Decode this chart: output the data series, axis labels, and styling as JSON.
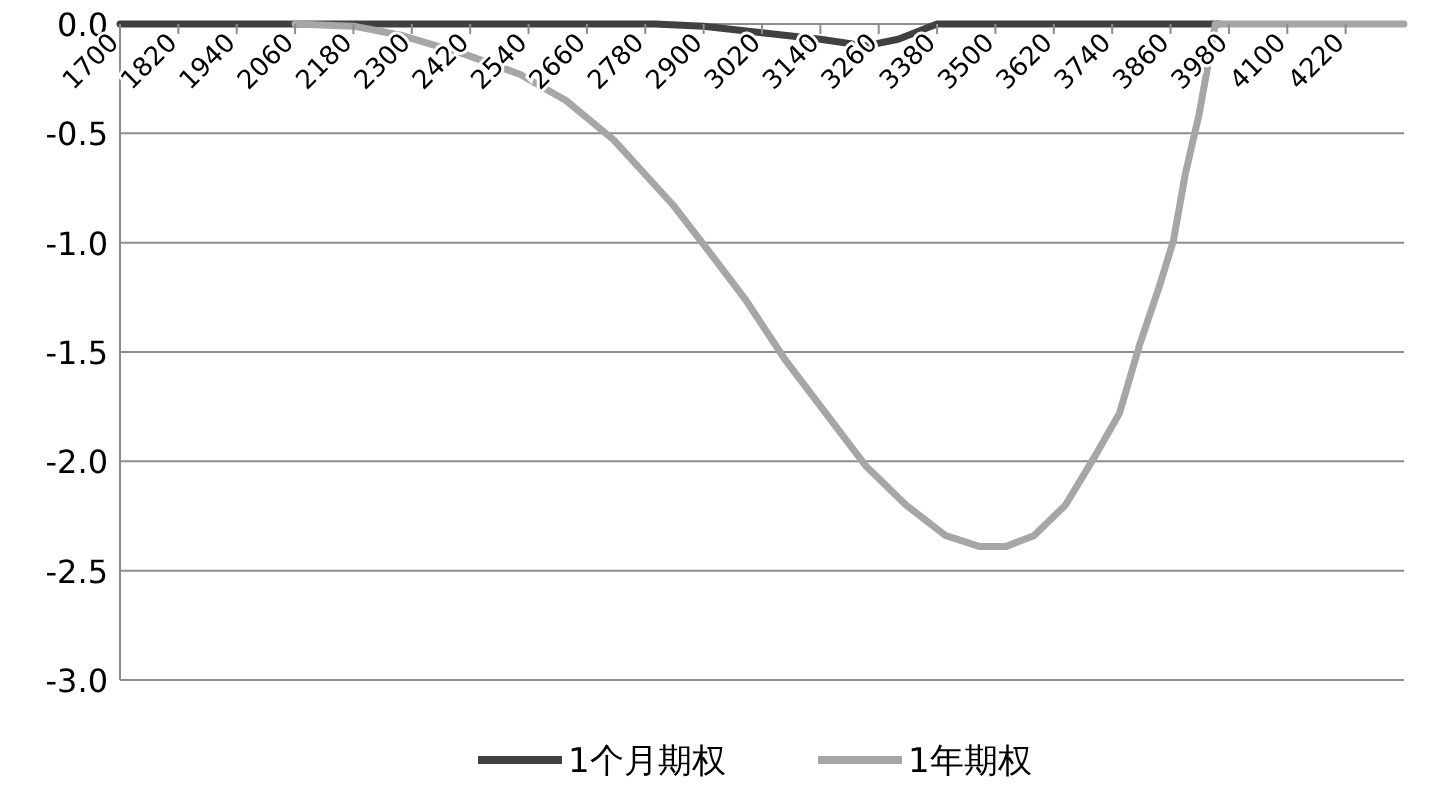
{
  "chart_data": {
    "type": "line",
    "xlim": [
      1700,
      4340
    ],
    "xticks": [
      1700,
      1820,
      1940,
      2060,
      2180,
      2300,
      2420,
      2540,
      2660,
      2780,
      2900,
      3020,
      3140,
      3260,
      3380,
      3500,
      3620,
      3740,
      3860,
      3980,
      4100,
      4220
    ],
    "ylim": [
      -3,
      0
    ],
    "yticks": [
      {
        "value": 0,
        "label": "0.0"
      },
      {
        "value": -0.5,
        "label": "-0.5"
      },
      {
        "value": -1,
        "label": "-1.0"
      },
      {
        "value": -1.5,
        "label": "-1.5"
      },
      {
        "value": -2,
        "label": "-2.0"
      },
      {
        "value": -2.5,
        "label": "-2.5"
      },
      {
        "value": -3,
        "label": "-3.0"
      }
    ],
    "grid": "y",
    "legend": "bottom",
    "marker": "none",
    "line_style": "solid",
    "series": [
      {
        "name": "1个月期权",
        "color": "#404040",
        "x": [
          1700,
          2800,
          2900,
          3020,
          3140,
          3233,
          3300,
          3380,
          3960
        ],
        "values": [
          0,
          0,
          -0.01,
          -0.04,
          -0.07,
          -0.1,
          -0.07,
          0,
          0
        ]
      },
      {
        "name": "1年期权",
        "color": "#a6a6a6",
        "x": [
          2060,
          2180,
          2275,
          2411,
          2522,
          2617,
          2715,
          2838,
          2904,
          2986,
          3069,
          3151,
          3233,
          3316,
          3398,
          3468,
          3521,
          3579,
          3644,
          3701,
          3755,
          3796,
          3837,
          3866,
          3890,
          3919,
          3952,
          4340
        ],
        "values": [
          0,
          -0.01,
          -0.05,
          -0.14,
          -0.23,
          -0.35,
          -0.53,
          -0.83,
          -1.02,
          -1.26,
          -1.54,
          -1.78,
          -2.02,
          -2.2,
          -2.34,
          -2.39,
          -2.39,
          -2.34,
          -2.2,
          -1.99,
          -1.78,
          -1.47,
          -1.2,
          -0.99,
          -0.69,
          -0.41,
          0,
          0
        ]
      }
    ]
  }
}
